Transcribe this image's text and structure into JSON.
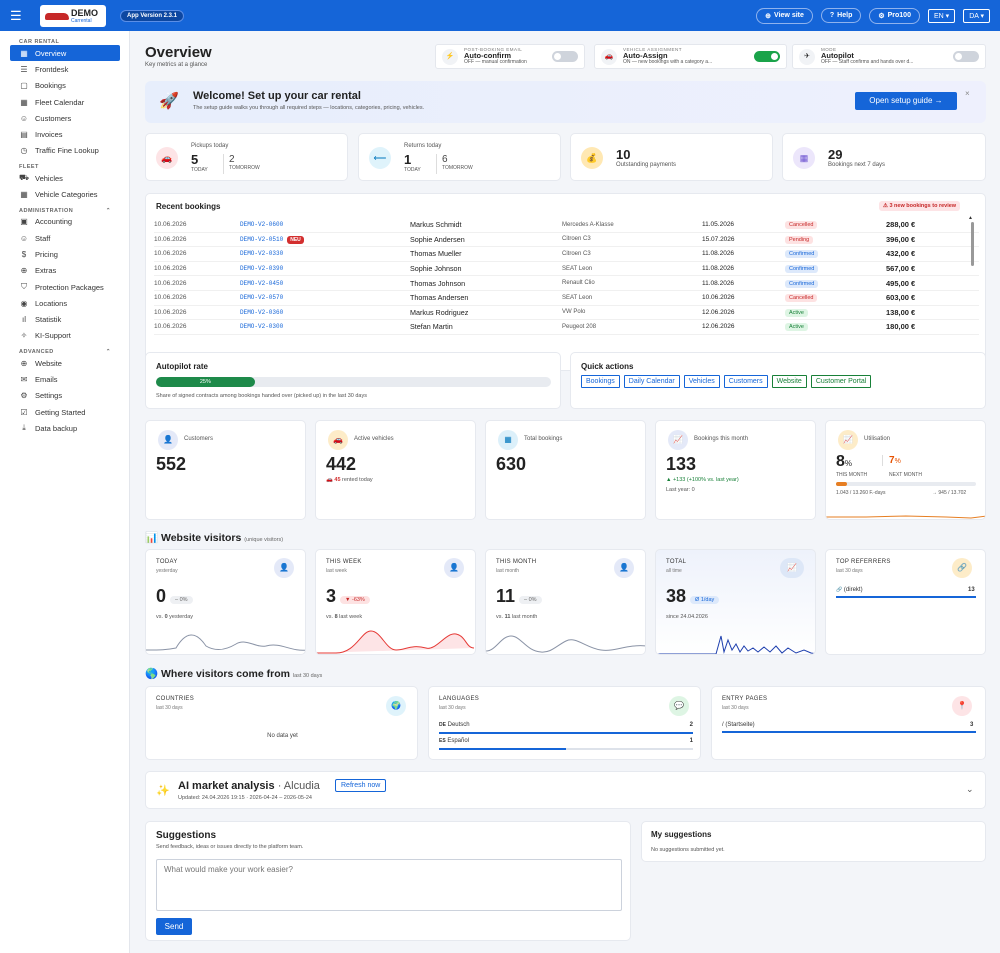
{
  "topbar": {
    "logo_text": "DEMO",
    "logo_sub": "Carrental",
    "version": "App Version 2.3.1",
    "view_site": "View site",
    "help": "Help",
    "plan": "Pro100",
    "lang": "EN",
    "country": "DA"
  },
  "sidebar": {
    "sections": [
      {
        "label": "CAR RENTAL",
        "items": [
          {
            "label": "Overview",
            "icon": "grid-icon"
          },
          {
            "label": "Frontdesk",
            "icon": "list-icon"
          },
          {
            "label": "Bookings",
            "icon": "document-icon"
          },
          {
            "label": "Fleet Calendar",
            "icon": "calendar-icon"
          },
          {
            "label": "Customers",
            "icon": "users-icon"
          },
          {
            "label": "Invoices",
            "icon": "invoice-icon"
          },
          {
            "label": "Traffic Fine Lookup",
            "icon": "clock-icon"
          }
        ]
      },
      {
        "label": "FLEET",
        "items": [
          {
            "label": "Vehicles",
            "icon": "truck-icon"
          },
          {
            "label": "Vehicle Categories",
            "icon": "grid-icon"
          }
        ]
      },
      {
        "label": "ADMINISTRATION",
        "items": [
          {
            "label": "Accounting",
            "icon": "calculator-icon"
          },
          {
            "label": "Staff",
            "icon": "user-plus-icon"
          },
          {
            "label": "Pricing",
            "icon": "dollar-icon"
          },
          {
            "label": "Extras",
            "icon": "plus-circle-icon"
          },
          {
            "label": "Protection Packages",
            "icon": "shield-icon"
          },
          {
            "label": "Locations",
            "icon": "pin-icon"
          },
          {
            "label": "Statistik",
            "icon": "bar-chart-icon"
          },
          {
            "label": "KI-Support",
            "icon": "sparkle-icon"
          }
        ]
      },
      {
        "label": "ADVANCED",
        "items": [
          {
            "label": "Website",
            "icon": "globe-icon"
          },
          {
            "label": "Emails",
            "icon": "mail-icon"
          },
          {
            "label": "Settings",
            "icon": "gear-icon"
          },
          {
            "label": "Getting Started",
            "icon": "checkbox-icon"
          },
          {
            "label": "Data backup",
            "icon": "download-icon"
          }
        ]
      }
    ]
  },
  "header": {
    "title": "Overview",
    "subtitle": "Key metrics at a glance"
  },
  "toggles": [
    {
      "caption": "POST-BOOKING EMAIL",
      "title": "Auto-confirm",
      "desc": "OFF — manual confirmation",
      "on": false,
      "icon": "bolt-icon"
    },
    {
      "caption": "VEHICLE ASSIGNMENT",
      "title": "Auto-Assign",
      "desc": "ON — new bookings with a category a...",
      "on": true,
      "icon": "car-icon"
    },
    {
      "caption": "MODE",
      "title": "Autopilot",
      "desc": "OFF — Staff confirms and hands over d...",
      "on": false,
      "icon": "plane-icon"
    }
  ],
  "welcome": {
    "title": "Welcome! Set up your car rental",
    "desc": "The setup guide walks you through all required steps — locations, categories, pricing, vehicles.",
    "button": "Open setup guide →",
    "close": "×"
  },
  "stats": {
    "pickups": {
      "label": "Pickups today",
      "today": "5",
      "today_lbl": "TODAY",
      "tomorrow": "2",
      "tomorrow_lbl": "TOMORROW"
    },
    "returns": {
      "label": "Returns today",
      "today": "1",
      "today_lbl": "TODAY",
      "tomorrow": "6",
      "tomorrow_lbl": "TOMORROW"
    },
    "payments": {
      "value": "10",
      "label": "Outstanding payments"
    },
    "next7": {
      "value": "29",
      "label": "Bookings next 7 days"
    }
  },
  "recent": {
    "title": "Recent bookings",
    "alert": "⚠ 3 new bookings to review",
    "rows": [
      {
        "date": "10.06.2026",
        "id": "DEMO-V2-0600",
        "new": "",
        "name": "Markus Schmidt",
        "car": "Mercedes A-Klasse",
        "from": "11.05.2026",
        "status": "Cancelled",
        "cls": "b-cancelled",
        "amount": "288,00 €"
      },
      {
        "date": "10.06.2026",
        "id": "DEMO-V2-0510",
        "new": "NEU",
        "name": "Sophie Andersen",
        "car": "Citroen C3",
        "from": "15.07.2026",
        "status": "Pending",
        "cls": "b-pending",
        "amount": "396,00 €"
      },
      {
        "date": "10.06.2026",
        "id": "DEMO-V2-0330",
        "new": "",
        "name": "Thomas Mueller",
        "car": "Citroen C3",
        "from": "11.08.2026",
        "status": "Confirmed",
        "cls": "b-confirmed",
        "amount": "432,00 €"
      },
      {
        "date": "10.06.2026",
        "id": "DEMO-V2-0390",
        "new": "",
        "name": "Sophie Johnson",
        "car": "SEAT Leon",
        "from": "11.08.2026",
        "status": "Confirmed",
        "cls": "b-confirmed",
        "amount": "567,00 €"
      },
      {
        "date": "10.06.2026",
        "id": "DEMO-V2-0450",
        "new": "",
        "name": "Thomas Johnson",
        "car": "Renault Clio",
        "from": "11.08.2026",
        "status": "Confirmed",
        "cls": "b-confirmed",
        "amount": "495,00 €"
      },
      {
        "date": "10.06.2026",
        "id": "DEMO-V2-0570",
        "new": "",
        "name": "Thomas Andersen",
        "car": "SEAT Leon",
        "from": "10.06.2026",
        "status": "Cancelled",
        "cls": "b-cancelled",
        "amount": "603,00 €"
      },
      {
        "date": "10.06.2026",
        "id": "DEMO-V2-0360",
        "new": "",
        "name": "Markus Rodriguez",
        "car": "VW Polo",
        "from": "12.06.2026",
        "status": "Active",
        "cls": "b-active",
        "amount": "138,00 €"
      },
      {
        "date": "10.06.2026",
        "id": "DEMO-V2-0300",
        "new": "",
        "name": "Stefan Martin",
        "car": "Peugeot 208",
        "from": "12.06.2026",
        "status": "Active",
        "cls": "b-active",
        "amount": "180,00 €"
      }
    ]
  },
  "autopilot": {
    "title": "Autopilot rate",
    "percent_label": "25%",
    "fill": 0.25,
    "desc": "Share of signed contracts among bookings handed over (picked up) in the last 30 days"
  },
  "quick": {
    "title": "Quick actions",
    "links": [
      {
        "label": "Bookings",
        "color": "#1565d8"
      },
      {
        "label": "Daily Calendar",
        "color": "#1565d8"
      },
      {
        "label": "Vehicles",
        "color": "#1565d8"
      },
      {
        "label": "Customers",
        "color": "#1565d8"
      },
      {
        "label": "Website",
        "color": "#188038"
      },
      {
        "label": "Customer Portal",
        "color": "#188038"
      }
    ]
  },
  "kpis": {
    "customers": {
      "label": "Customers",
      "value": "552"
    },
    "vehicles": {
      "label": "Active vehicles",
      "value": "442",
      "rented_num": "45",
      "rented": "rented today"
    },
    "bookings": {
      "label": "Total bookings",
      "value": "630"
    },
    "month": {
      "label": "Bookings this month",
      "value": "133",
      "delta": "▲ +133 (+100% vs. last year)",
      "last": "Last year: 0"
    },
    "util": {
      "label": "Utilisation",
      "this": "8",
      "this_unit": "%",
      "this_lbl": "THIS MONTH",
      "next": "7",
      "next_unit": "%",
      "next_lbl": "NEXT MONTH",
      "fill": 0.08,
      "days_left": "1.043 / 13.260 F.-days",
      "days_right": "→ 945 / 13.702"
    }
  },
  "visitors": {
    "title": "Website visitors",
    "sub": "(unique visitors)",
    "today": {
      "cap": "TODAY",
      "sub": "yesterday",
      "value": "0",
      "pill": "– 0%",
      "vs_pre": "vs.",
      "vs_num": "0",
      "vs_post": "yesterday"
    },
    "week": {
      "cap": "THIS WEEK",
      "sub": "last week",
      "value": "3",
      "pill": "▼ -63%",
      "vs_pre": "vs.",
      "vs_num": "8",
      "vs_post": "last week"
    },
    "month": {
      "cap": "THIS MONTH",
      "sub": "last month",
      "value": "11",
      "pill": "– 0%",
      "vs_pre": "vs.",
      "vs_num": "11",
      "vs_post": "last month"
    },
    "total": {
      "cap": "TOTAL",
      "sub": "all time",
      "value": "38",
      "pill": "Ø 1/day",
      "since": "since 24.04.2026"
    },
    "ref": {
      "cap": "TOP REFERRERS",
      "sub": "last 30 days",
      "name": "(direkt)",
      "count": "13",
      "flag": "🔗"
    }
  },
  "origin": {
    "title": "Where visitors come from",
    "sub": "last 30 days",
    "countries": {
      "cap": "COUNTRIES",
      "sub": "last 30 days",
      "empty": "No data yet"
    },
    "languages": {
      "cap": "LANGUAGES",
      "sub": "last 30 days",
      "items": [
        {
          "code": "DE",
          "name": "Deutsch",
          "count": "2",
          "fill": 1.0
        },
        {
          "code": "ES",
          "name": "Español",
          "count": "1",
          "fill": 0.5
        }
      ]
    },
    "entry": {
      "cap": "ENTRY PAGES",
      "sub": "last 30 days",
      "page": "/ (Startseite)",
      "count": "3"
    }
  },
  "ai": {
    "title": "AI market analysis",
    "place": "· Alcudia",
    "button": "Refresh now",
    "updated": "Updated: 24.04.2026 19:15 · 2026-04-24 – 2026-05-24"
  },
  "suggest": {
    "title": "Suggestions",
    "desc": "Send feedback, ideas or issues directly to the platform team.",
    "placeholder": "What would make your work easier?",
    "send": "Send",
    "mine_title": "My suggestions",
    "mine_empty": "No suggestions submitted yet."
  }
}
